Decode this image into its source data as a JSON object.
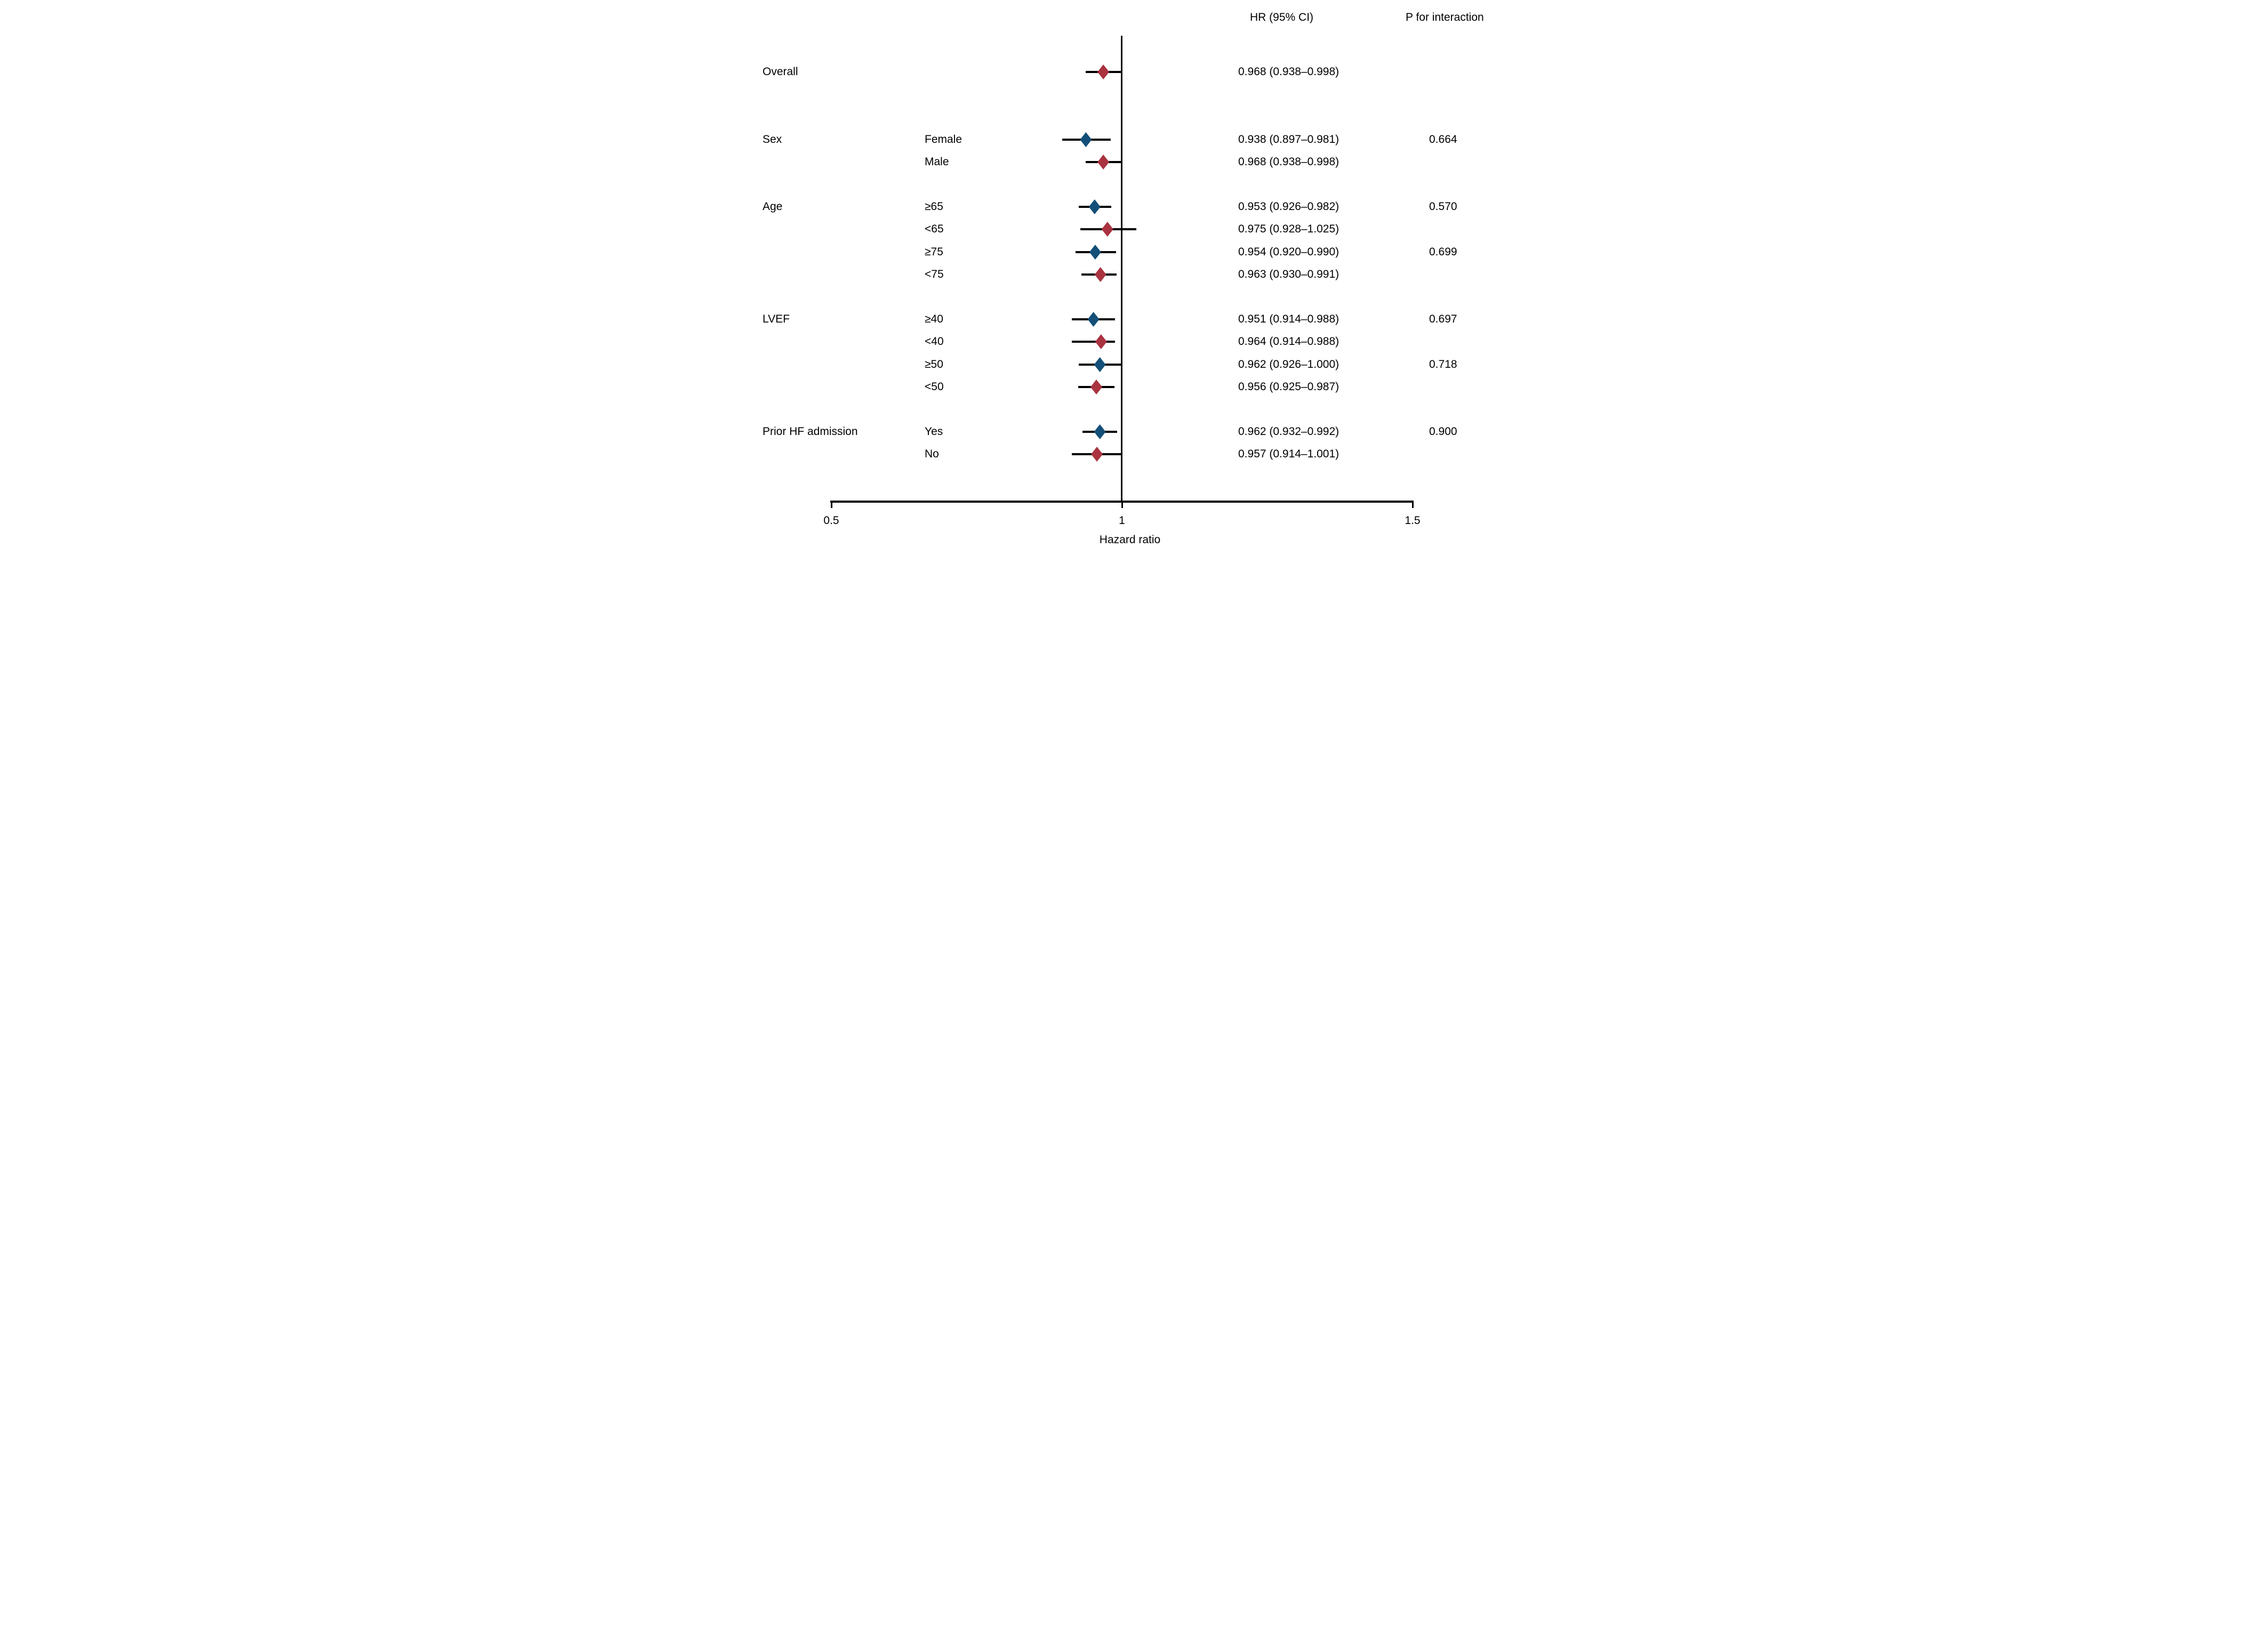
{
  "figure": {
    "header": {
      "hr_col": "HR (95% CI)",
      "p_col": "P for interaction"
    },
    "colors": {
      "red": "#a93340",
      "blue": "#134f78",
      "line": "#000000",
      "background": "#ffffff"
    }
  },
  "chart_data": {
    "type": "forest",
    "xlabel": "Hazard ratio",
    "axis": {
      "min": 0.5,
      "max": 1.5,
      "ticks": [
        0.5,
        1,
        1.5
      ],
      "tick_labels": [
        "0.5",
        "1",
        "1.5"
      ],
      "refline": 1,
      "grid": false
    },
    "columns": {
      "hr": "HR (95% CI)",
      "p": "P for interaction"
    },
    "rows": [
      {
        "group": "Overall",
        "subgroup": "",
        "hr": 0.968,
        "lo": 0.938,
        "hi": 0.998,
        "hr_ci": "0.968 (0.938–0.998)",
        "p": "",
        "color": "red",
        "gap": 0
      },
      {
        "group": "Sex",
        "subgroup": "Female",
        "hr": 0.938,
        "lo": 0.897,
        "hi": 0.981,
        "hr_ci": "0.938 (0.897–0.981)",
        "p": "0.664",
        "color": "blue",
        "gap": 3
      },
      {
        "group": "",
        "subgroup": "Male",
        "hr": 0.968,
        "lo": 0.938,
        "hi": 0.998,
        "hr_ci": "0.968 (0.938–0.998)",
        "p": "",
        "color": "red",
        "gap": 1
      },
      {
        "group": "Age",
        "subgroup": "≥65",
        "hr": 0.953,
        "lo": 0.926,
        "hi": 0.982,
        "hr_ci": "0.953 (0.926–0.982)",
        "p": "0.570",
        "color": "blue",
        "gap": 2
      },
      {
        "group": "",
        "subgroup": "<65",
        "hr": 0.975,
        "lo": 0.928,
        "hi": 1.025,
        "hr_ci": "0.975 (0.928–1.025)",
        "p": "",
        "color": "red",
        "gap": 1
      },
      {
        "group": "",
        "subgroup": "≥75",
        "hr": 0.954,
        "lo": 0.92,
        "hi": 0.99,
        "hr_ci": "0.954 (0.920–0.990)",
        "p": "0.699",
        "color": "blue",
        "gap": 1
      },
      {
        "group": "",
        "subgroup": "<75",
        "hr": 0.963,
        "lo": 0.93,
        "hi": 0.991,
        "hr_ci": "0.963 (0.930–0.991)",
        "p": "",
        "color": "red",
        "gap": 1
      },
      {
        "group": "LVEF",
        "subgroup": "≥40",
        "hr": 0.951,
        "lo": 0.914,
        "hi": 0.988,
        "hr_ci": "0.951 (0.914–0.988)",
        "p": "0.697",
        "color": "blue",
        "gap": 2
      },
      {
        "group": "",
        "subgroup": "<40",
        "hr": 0.964,
        "lo": 0.914,
        "hi": 0.988,
        "hr_ci": "0.964 (0.914–0.988)",
        "p": "",
        "color": "red",
        "gap": 1
      },
      {
        "group": "",
        "subgroup": "≥50",
        "hr": 0.962,
        "lo": 0.926,
        "hi": 1.0,
        "hr_ci": "0.962 (0.926–1.000)",
        "p": "0.718",
        "color": "blue",
        "gap": 1
      },
      {
        "group": "",
        "subgroup": "<50",
        "hr": 0.956,
        "lo": 0.925,
        "hi": 0.987,
        "hr_ci": "0.956 (0.925–0.987)",
        "p": "",
        "color": "red",
        "gap": 1
      },
      {
        "group": "Prior HF admission",
        "subgroup": "Yes",
        "hr": 0.962,
        "lo": 0.932,
        "hi": 0.992,
        "hr_ci": "0.962 (0.932–0.992)",
        "p": "0.900",
        "color": "blue",
        "gap": 2
      },
      {
        "group": "",
        "subgroup": "No",
        "hr": 0.957,
        "lo": 0.914,
        "hi": 1.001,
        "hr_ci": "0.957 (0.914–1.001)",
        "p": "",
        "color": "red",
        "gap": 1
      }
    ]
  }
}
